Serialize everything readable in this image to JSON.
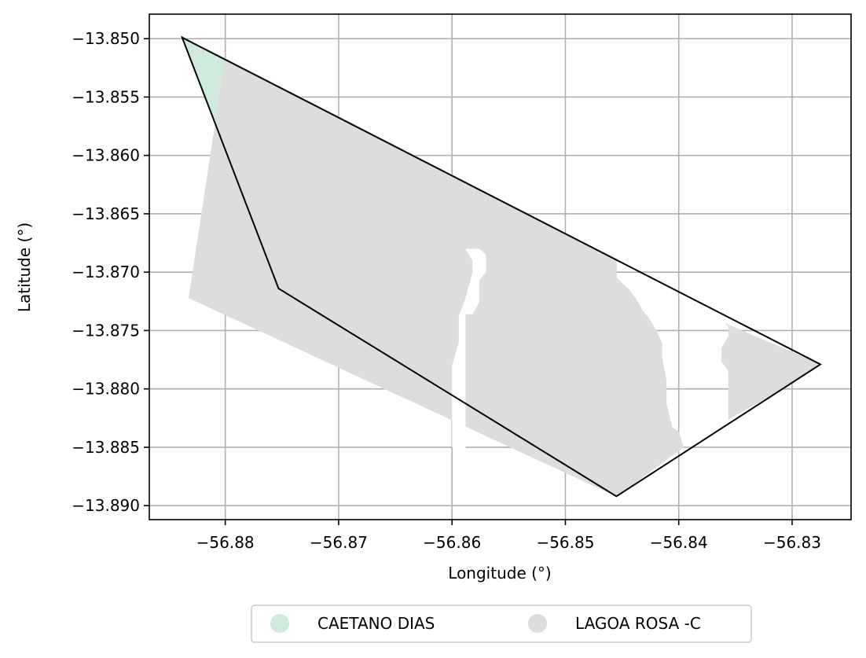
{
  "axes": {
    "xlabel": "Longitude (°)",
    "ylabel": "Latitude (°)",
    "x_ticks": [
      -56.88,
      -56.87,
      -56.86,
      -56.85,
      -56.84,
      -56.83
    ],
    "y_ticks": [
      -13.85,
      -13.855,
      -13.86,
      -13.865,
      -13.87,
      -13.875,
      -13.88,
      -13.885,
      -13.89
    ],
    "x_tick_labels": [
      "−56.88",
      "−56.87",
      "−56.86",
      "−56.85",
      "−56.84",
      "−56.83"
    ],
    "y_tick_labels": [
      "−13.850",
      "−13.855",
      "−13.860",
      "−13.865",
      "−13.870",
      "−13.875",
      "−13.880",
      "−13.885",
      "−13.890"
    ],
    "xlim": [
      -56.8867,
      -56.8248
    ],
    "ylim": [
      -13.8912,
      -13.8479
    ],
    "grid": true
  },
  "legend": {
    "placement": "below plot, centered",
    "items": [
      {
        "label": "CAETANO DIAS",
        "color": "#d0ebdd"
      },
      {
        "label": "LAGOA ROSA -C",
        "color": "#dddddd"
      }
    ]
  },
  "map_data": {
    "boundary": [
      [
        -56.8838,
        -13.8499
      ],
      [
        -56.8275,
        -13.8779
      ],
      [
        -56.8455,
        -13.8892
      ],
      [
        -56.8753,
        -13.8714
      ]
    ],
    "regions": [
      {
        "name": "CAETANO DIAS",
        "color": "#d0ebdd",
        "polygon": [
          [
            -56.8838,
            -13.8499
          ],
          [
            -56.88,
            -13.8517
          ],
          [
            -56.8832,
            -13.8722
          ],
          [
            -56.8753,
            -13.8714
          ]
        ]
      },
      {
        "name": "LAGOA ROSA -C",
        "color": "#dddddd",
        "polygon": [
          [
            -56.88,
            -13.8517
          ],
          [
            -56.8455,
            -13.8689
          ],
          [
            -56.8455,
            -13.8705
          ],
          [
            -56.8444,
            -13.8715
          ],
          [
            -56.8438,
            -13.8723
          ],
          [
            -56.8432,
            -13.8733
          ],
          [
            -56.8426,
            -13.874
          ],
          [
            -56.842,
            -13.875
          ],
          [
            -56.8415,
            -13.8761
          ],
          [
            -56.8415,
            -13.8773
          ],
          [
            -56.8411,
            -13.8793
          ],
          [
            -56.8411,
            -13.8813
          ],
          [
            -56.8406,
            -13.8833
          ],
          [
            -56.84,
            -13.8837
          ],
          [
            -56.8396,
            -13.885
          ],
          [
            -56.8455,
            -13.8892
          ],
          [
            -56.8832,
            -13.8722
          ]
        ]
      },
      {
        "name": "LAGOA ROSA -C",
        "color": "#dddddd",
        "polygon": [
          [
            -56.8359,
            -13.8744
          ],
          [
            -56.8275,
            -13.8779
          ],
          [
            -56.83,
            -13.8795
          ],
          [
            -56.8356,
            -13.8826
          ],
          [
            -56.8356,
            -13.8784
          ],
          [
            -56.8362,
            -13.8777
          ],
          [
            -56.8362,
            -13.8765
          ],
          [
            -56.8356,
            -13.8755
          ],
          [
            -56.8356,
            -13.8746
          ]
        ]
      }
    ],
    "holes": [
      [
        [
          -56.8588,
          -13.868
        ],
        [
          -56.8576,
          -13.868
        ],
        [
          -56.857,
          -13.8685
        ],
        [
          -56.857,
          -13.87
        ],
        [
          -56.8576,
          -13.8707
        ],
        [
          -56.8576,
          -13.8726
        ],
        [
          -56.8582,
          -13.8736
        ],
        [
          -56.8588,
          -13.8736
        ],
        [
          -56.8588,
          -13.876
        ],
        [
          -56.8588,
          -13.88
        ],
        [
          -56.8588,
          -13.886
        ],
        [
          -56.86,
          -13.885
        ],
        [
          -56.86,
          -13.878
        ],
        [
          -56.8594,
          -13.876
        ],
        [
          -56.8594,
          -13.8738
        ],
        [
          -56.8588,
          -13.8722
        ],
        [
          -56.8582,
          -13.87
        ],
        [
          -56.8582,
          -13.869
        ]
      ]
    ]
  }
}
